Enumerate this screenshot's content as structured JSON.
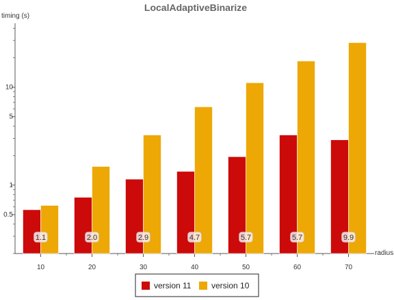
{
  "chart_data": {
    "type": "bar",
    "title": "LocalAdaptiveBinarize",
    "xlabel": "radius",
    "ylabel": "timing (s)",
    "yscale": "log",
    "ylim": [
      0.2,
      45
    ],
    "categories": [
      "10",
      "20",
      "30",
      "40",
      "50",
      "60",
      "70"
    ],
    "yticks": [
      {
        "value": 0.5,
        "label": "0.5"
      },
      {
        "value": 1,
        "label": "1"
      },
      {
        "value": 5,
        "label": "5"
      },
      {
        "value": 10,
        "label": "10"
      }
    ],
    "series": [
      {
        "name": "version 11",
        "color": "#cc0a0a",
        "values": [
          0.56,
          0.75,
          1.15,
          1.38,
          1.95,
          3.25,
          2.9
        ]
      },
      {
        "name": "version 10",
        "color": "#eda806",
        "values": [
          0.62,
          1.55,
          3.25,
          6.3,
          11.1,
          18.5,
          28.5
        ]
      }
    ],
    "bar_labels": [
      "1.1",
      "2.0",
      "2.9",
      "4.7",
      "5.7",
      "5.7",
      "9.9"
    ],
    "grid": false,
    "legend_position": "bottom-center"
  }
}
